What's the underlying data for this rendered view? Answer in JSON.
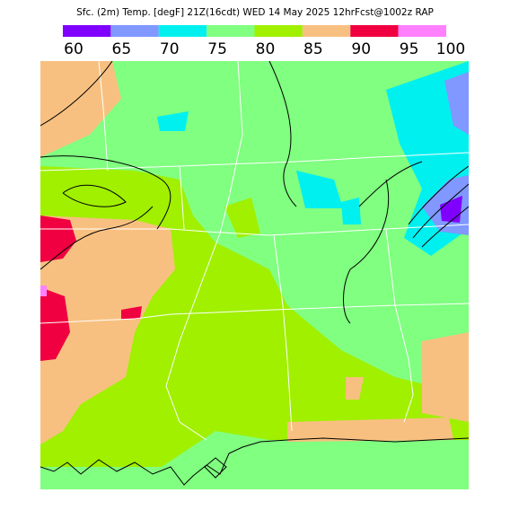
{
  "title": "Sfc. (2m) Temp. [degF] 21Z(16cdt) WED 14 May 2025 12hrFcst@1002z RAP",
  "colorbar": {
    "labels": [
      60,
      65,
      70,
      75,
      80,
      85,
      90,
      95,
      100
    ],
    "colors": [
      "#8000ff",
      "#8098ff",
      "#00f0f0",
      "#80ff80",
      "#a0f000",
      "#f8c080",
      "#f00040",
      "#ff80ff"
    ]
  }
}
